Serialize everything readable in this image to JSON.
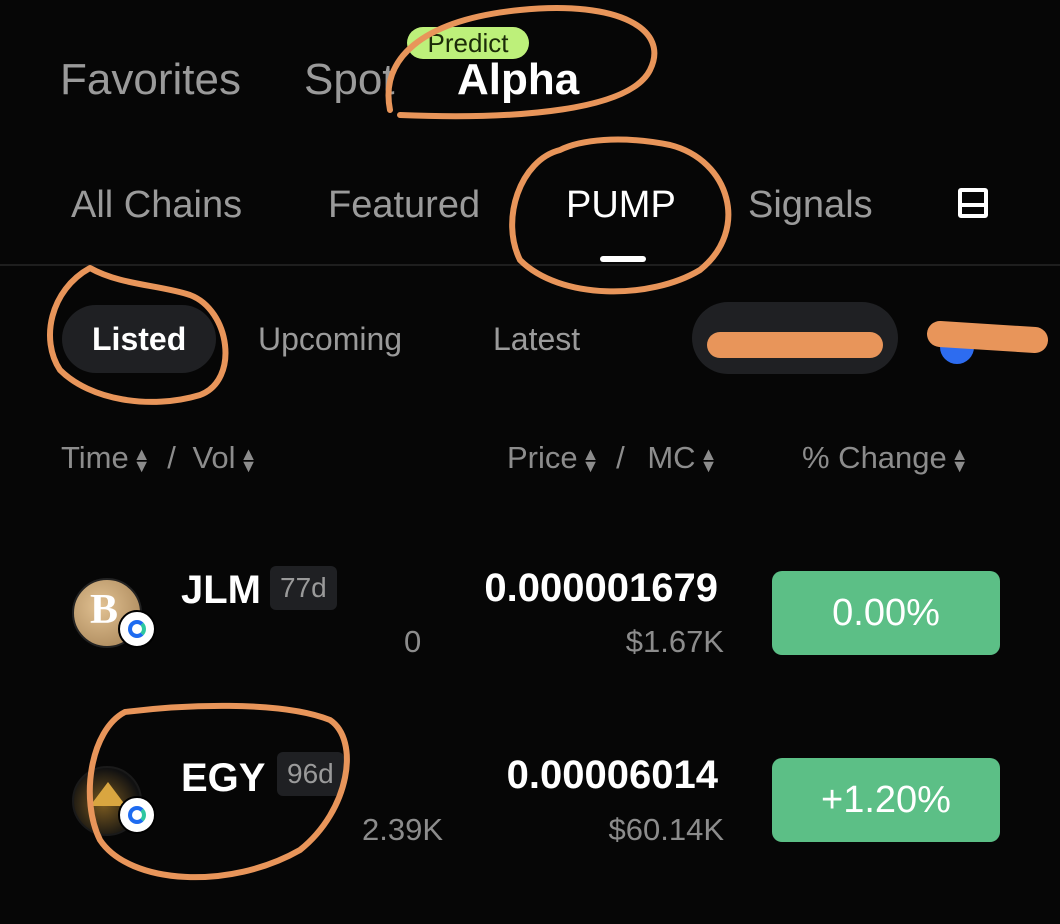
{
  "top_tabs": [
    {
      "label": "Favorites"
    },
    {
      "label": "Spot"
    },
    {
      "label": "Alpha",
      "active": true
    }
  ],
  "predict_badge": "Predict",
  "sub_tabs": [
    {
      "label": "All Chains"
    },
    {
      "label": "Featured"
    },
    {
      "label": "PUMP",
      "active": true
    },
    {
      "label": "Signals"
    }
  ],
  "filters": [
    {
      "label": "Listed",
      "active": true
    },
    {
      "label": "Upcoming"
    },
    {
      "label": "Latest"
    }
  ],
  "columns": {
    "time": "Time",
    "sep1": "/",
    "vol": "Vol",
    "price": "Price",
    "sep2": "/",
    "mc": "MC",
    "change": "% Change"
  },
  "rows": [
    {
      "symbol": "JLM",
      "age": "77d",
      "volume": "0",
      "price": "0.000001679",
      "market_cap": "$1.67K",
      "change": "0.00%"
    },
    {
      "symbol": "EGY",
      "age": "96d",
      "volume": "2.39K",
      "price": "0.00006014",
      "market_cap": "$60.14K",
      "change": "+1.20%"
    }
  ],
  "colors": {
    "accent_green": "#5cbf86",
    "badge_green": "#bdf07a",
    "annotation": "#e8955a"
  }
}
